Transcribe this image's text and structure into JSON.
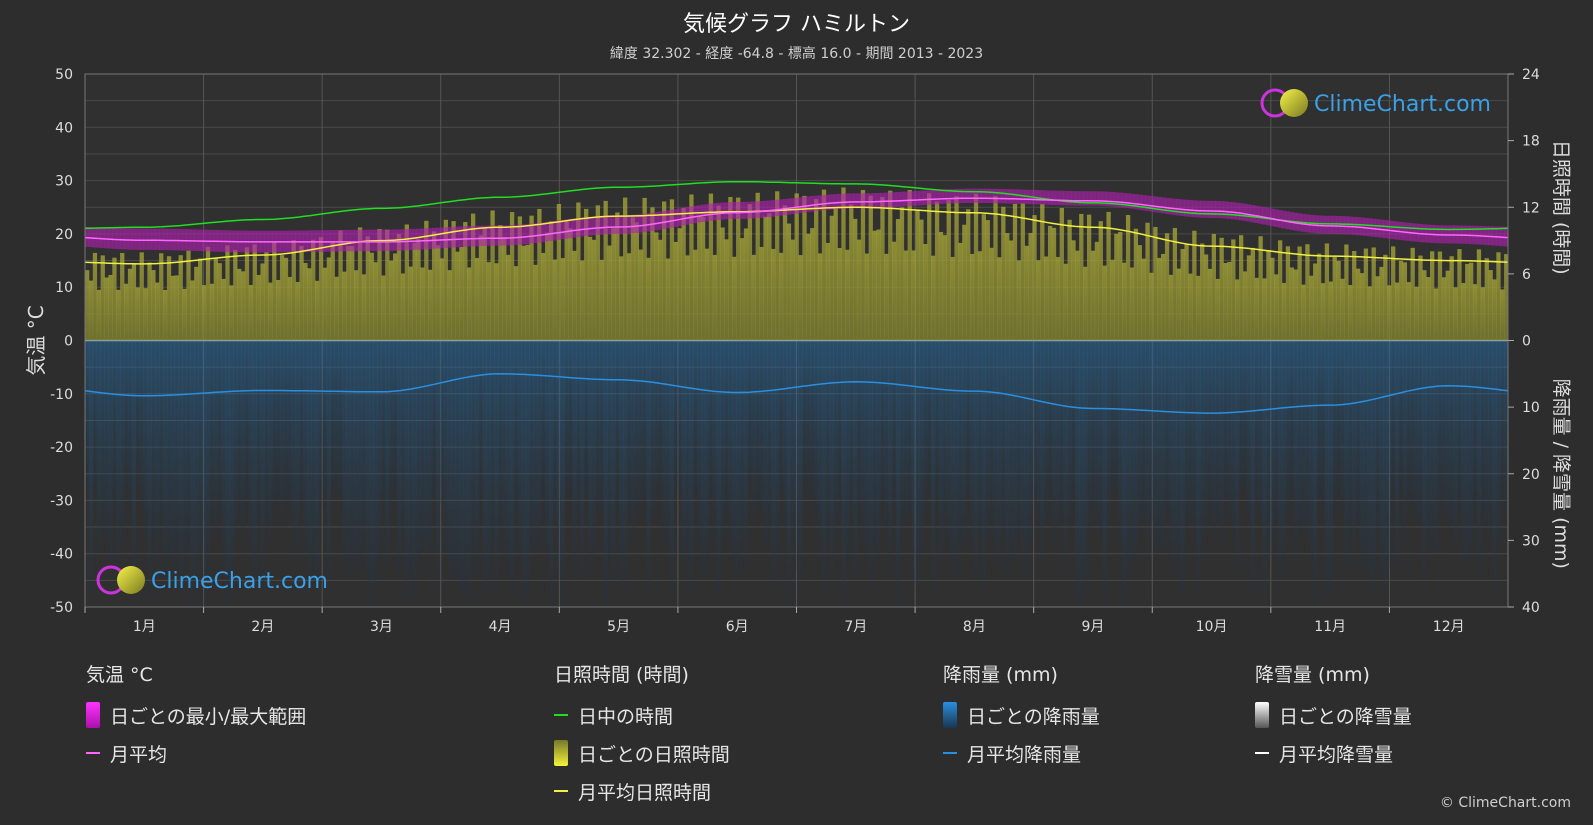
{
  "title": "気候グラフ ハミルトン",
  "subtitle": "緯度 32.302 - 経度 -64.8 - 標高 16.0 - 期間 2013 - 2023",
  "watermark": "ClimeChart.com",
  "copyright": "© ClimeChart.com",
  "colors": {
    "background": "#2d2d2d",
    "plot_bg": "#303030",
    "daylight": "#22dd22",
    "temp_avg": "#ff66ff",
    "temp_range": "#cc22cc",
    "sunshine_bar": "#9a9a2a",
    "sunshine_avg": "#f0f040",
    "rain_bar": "#1f5f8f",
    "rain_avg": "#2a8fe0",
    "snow_avg": "#ffffff"
  },
  "legend": {
    "temp": {
      "header": "気温 °C",
      "items": [
        "日ごとの最小/最大範囲",
        "月平均"
      ]
    },
    "sun": {
      "header": "日照時間 (時間)",
      "items": [
        "日中の時間",
        "日ごとの日照時間",
        "月平均日照時間"
      ]
    },
    "rain": {
      "header": "降雨量 (mm)",
      "items": [
        "日ごとの降雨量",
        "月平均降雨量"
      ]
    },
    "snow": {
      "header": "降雪量 (mm)",
      "items": [
        "日ごとの降雪量",
        "月平均降雪量"
      ]
    }
  },
  "chart_data": {
    "type": "line",
    "categories": [
      "1月",
      "2月",
      "3月",
      "4月",
      "5月",
      "6月",
      "7月",
      "8月",
      "9月",
      "10月",
      "11月",
      "12月"
    ],
    "y_left": {
      "label": "気温 °C",
      "ticks": [
        50,
        40,
        30,
        20,
        10,
        0,
        -10,
        -20,
        -30,
        -40,
        -50
      ],
      "range": [
        -50,
        50
      ]
    },
    "y_right_top": {
      "label": "日照時間 (時間)",
      "ticks": [
        24,
        18,
        12,
        6,
        0
      ],
      "range": [
        0,
        24
      ]
    },
    "y_right_bottom": {
      "label": "降雨量 / 降雪量 (mm)",
      "ticks": [
        0,
        10,
        20,
        30,
        40
      ],
      "range": [
        0,
        40
      ]
    },
    "series": [
      {
        "name": "日中の時間",
        "unit": "hours",
        "values": [
          10.2,
          10.9,
          11.9,
          12.9,
          13.8,
          14.3,
          14.1,
          13.4,
          12.4,
          11.4,
          10.5,
          10.0
        ]
      },
      {
        "name": "月平均日照時間",
        "unit": "hours",
        "values": [
          6.9,
          7.7,
          9.0,
          10.2,
          11.2,
          11.6,
          12.0,
          11.5,
          10.2,
          8.5,
          7.6,
          7.2
        ]
      },
      {
        "name": "月平均",
        "unit": "°C",
        "values": [
          18.8,
          18.5,
          18.5,
          19.2,
          21.3,
          24.0,
          26.0,
          26.7,
          26.2,
          24.3,
          21.5,
          19.8
        ]
      },
      {
        "name": "日ごとの最小/最大範囲",
        "unit": "°C",
        "min": [
          17.0,
          16.5,
          16.8,
          17.8,
          20.0,
          22.8,
          24.8,
          25.8,
          25.3,
          23.0,
          20.0,
          18.2
        ],
        "max": [
          21.0,
          20.6,
          20.8,
          21.6,
          23.5,
          26.0,
          27.6,
          28.5,
          28.0,
          26.2,
          23.4,
          21.6
        ]
      },
      {
        "name": "月平均降雨量",
        "unit": "mm",
        "values": [
          8.3,
          7.5,
          7.7,
          5.0,
          5.9,
          7.8,
          6.2,
          7.6,
          10.2,
          10.9,
          9.7,
          6.8
        ]
      },
      {
        "name": "月平均降雪量",
        "unit": "mm",
        "values": [
          0,
          0,
          0,
          0,
          0,
          0,
          0,
          0,
          0,
          0,
          0,
          0
        ]
      }
    ]
  }
}
